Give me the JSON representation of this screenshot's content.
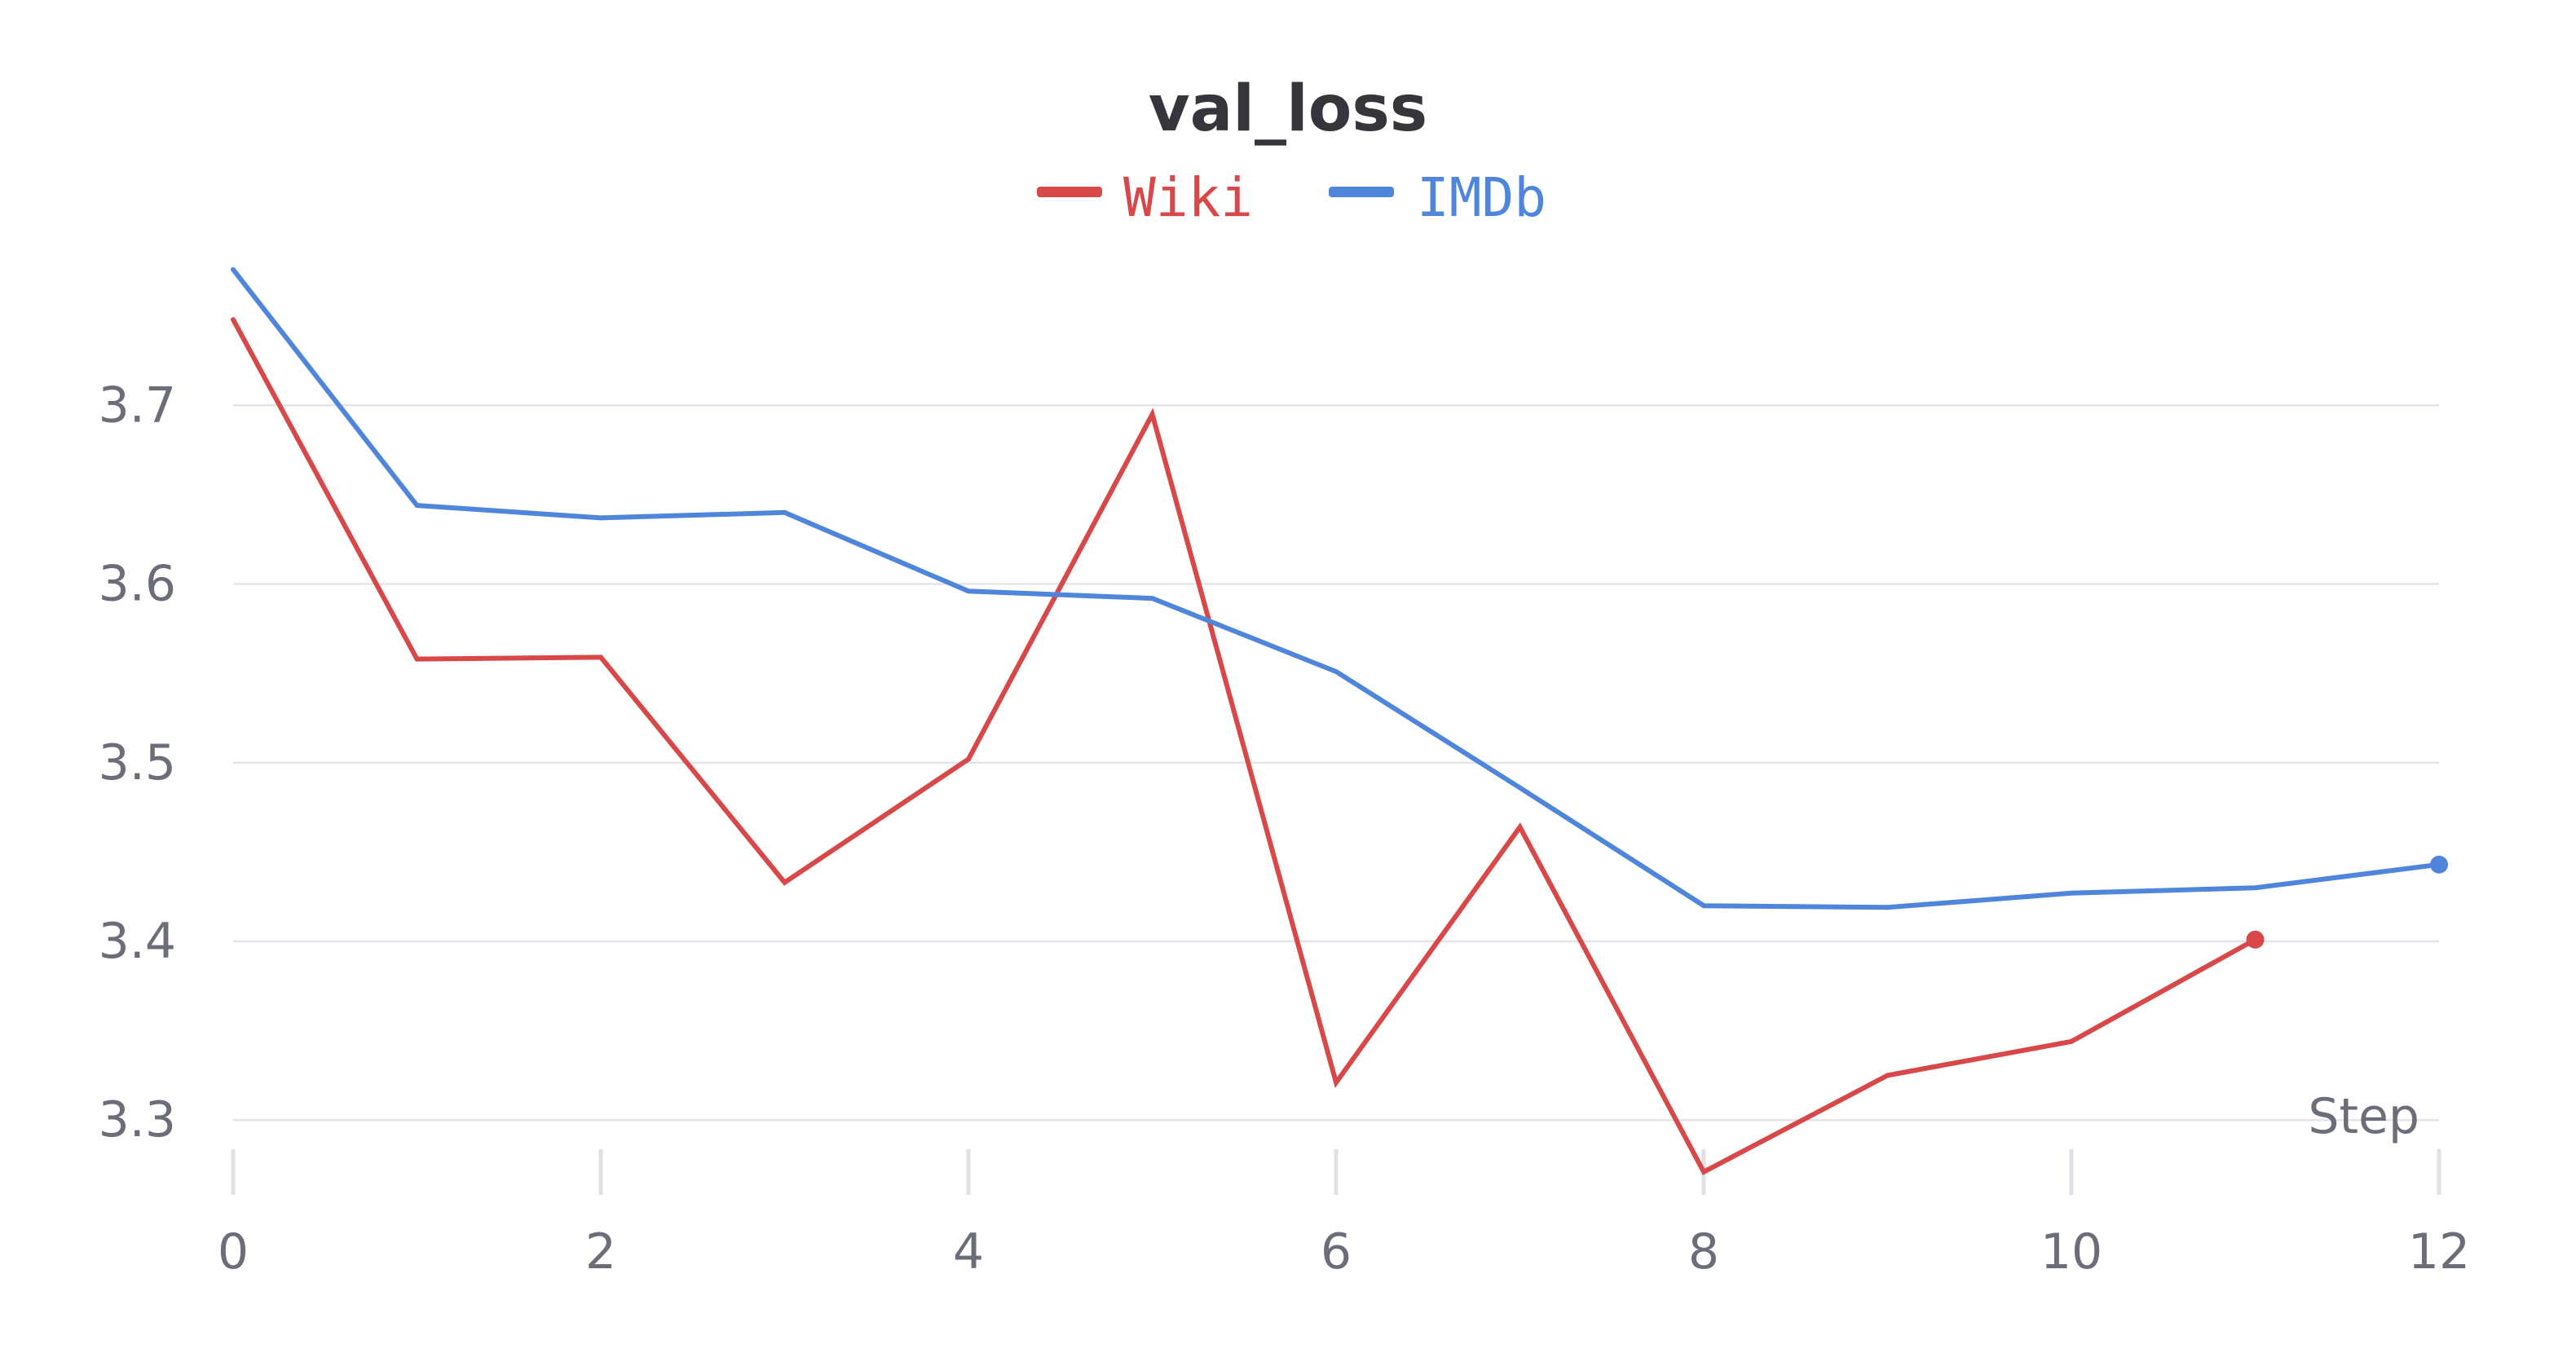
{
  "chart_data": {
    "type": "line",
    "title": "val_loss",
    "xlabel": "Step",
    "ylabel": "",
    "xlim": [
      0,
      12
    ],
    "ylim": [
      3.27,
      3.79
    ],
    "xticks": [
      "0",
      "2",
      "4",
      "6",
      "8",
      "10",
      "12"
    ],
    "yticks": [
      "3.3",
      "3.4",
      "3.5",
      "3.6",
      "3.7"
    ],
    "grid": true,
    "legend_position": "top-center",
    "series": [
      {
        "name": "Wiki",
        "color": "#d94848",
        "x": [
          0,
          1,
          2,
          3,
          4,
          5,
          6,
          7,
          8,
          9,
          10,
          11
        ],
        "y": [
          3.748,
          3.558,
          3.559,
          3.433,
          3.502,
          3.695,
          3.321,
          3.464,
          3.271,
          3.325,
          3.344,
          3.401
        ]
      },
      {
        "name": "IMDb",
        "color": "#4f86db",
        "x": [
          0,
          1,
          2,
          3,
          4,
          5,
          6,
          7,
          8,
          9,
          10,
          11,
          12
        ],
        "y": [
          3.776,
          3.644,
          3.637,
          3.64,
          3.596,
          3.592,
          3.551,
          3.486,
          3.42,
          3.419,
          3.427,
          3.43,
          3.443
        ]
      }
    ]
  }
}
